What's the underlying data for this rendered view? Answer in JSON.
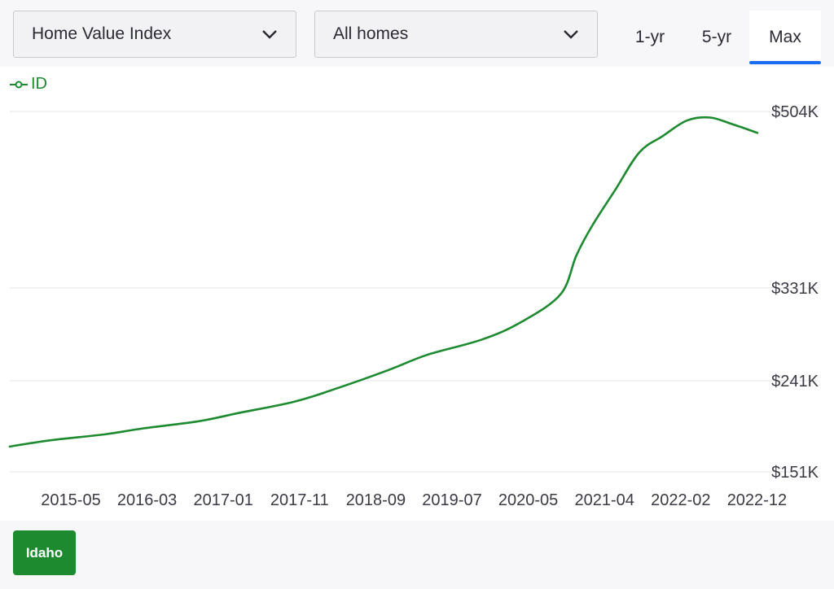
{
  "controls": {
    "metric_select": "Home Value Index",
    "type_select": "All homes",
    "range_buttons": [
      "1-yr",
      "5-yr",
      "Max"
    ],
    "active_range": "Max"
  },
  "legend": {
    "label": "ID",
    "icon": "line-circle-marker-icon"
  },
  "region_chip": "Idaho",
  "colors": {
    "series": "#1e8a30",
    "active_tab": "#1a6df0",
    "grid": "#e5e5ea"
  },
  "chart_data": {
    "type": "line",
    "title": "",
    "xlabel": "",
    "ylabel": "",
    "y_ticks": [
      "$504K",
      "$331K",
      "$241K",
      "$151K"
    ],
    "y_tick_values": [
      504000,
      331000,
      241000,
      151000
    ],
    "x_ticks": [
      "2015-05",
      "2016-03",
      "2017-01",
      "2017-11",
      "2018-09",
      "2019-07",
      "2020-05",
      "2021-04",
      "2022-02",
      "2022-12"
    ],
    "grid": true,
    "legend_position": "top-left",
    "series": [
      {
        "name": "ID",
        "x": [
          "2015-01",
          "2015-06",
          "2016-01",
          "2016-06",
          "2017-01",
          "2017-06",
          "2018-01",
          "2018-06",
          "2019-01",
          "2019-06",
          "2020-01",
          "2020-06",
          "2020-11",
          "2021-01",
          "2021-03",
          "2021-06",
          "2021-09",
          "2021-12",
          "2022-03",
          "2022-06",
          "2022-09",
          "2022-12"
        ],
        "values": [
          176000,
          182000,
          188000,
          194000,
          201000,
          209000,
          220000,
          232000,
          251000,
          266000,
          281000,
          298000,
          325000,
          363000,
          392000,
          428000,
          464000,
          480000,
          495000,
          498000,
          491000,
          483000
        ]
      }
    ]
  }
}
